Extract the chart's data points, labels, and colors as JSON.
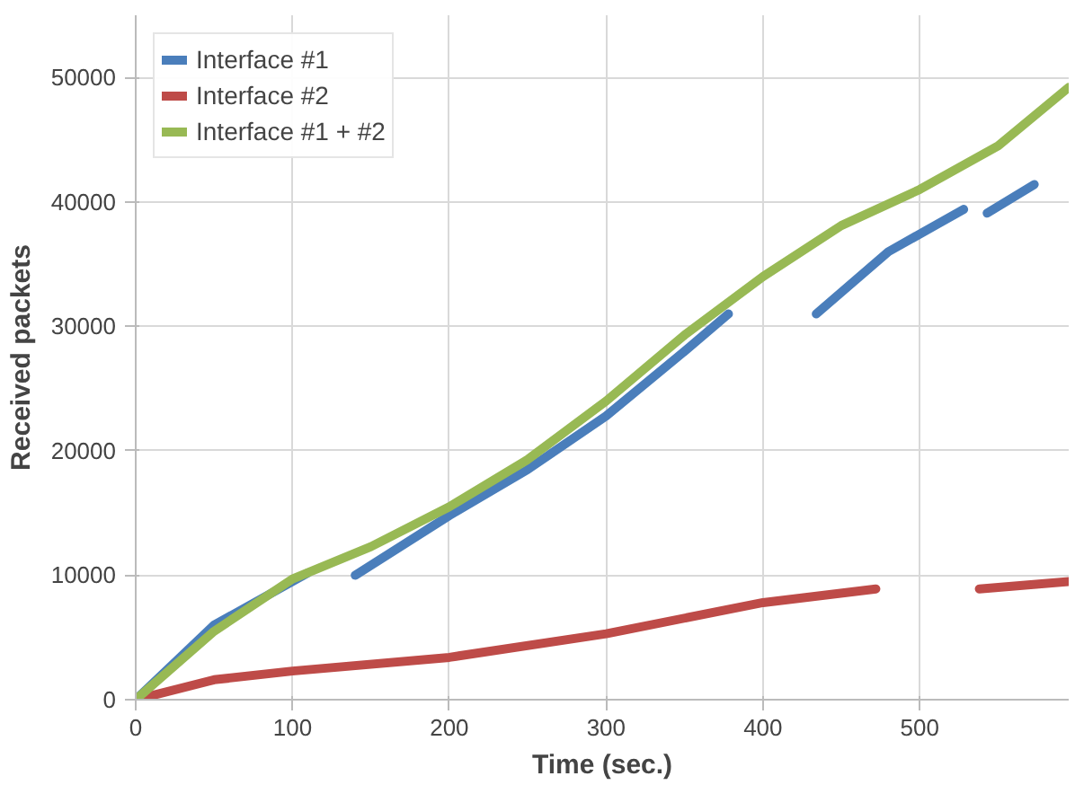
{
  "chart_data": {
    "type": "line",
    "xlabel": "Time (sec.)",
    "ylabel": "Received packets",
    "xlim": [
      0,
      595
    ],
    "ylim": [
      0,
      55000
    ],
    "xticks": [
      0,
      100,
      200,
      300,
      400,
      500
    ],
    "yticks": [
      0,
      10000,
      20000,
      30000,
      40000,
      50000
    ],
    "grid": true,
    "legend": "top left",
    "series": [
      {
        "name": "Interface #1",
        "color": "#4a7ebb",
        "x": [
          0,
          50,
          110,
          125,
          140,
          200,
          250,
          300,
          350,
          378,
          405,
          434,
          480,
          528,
          536,
          543,
          573
        ],
        "values": [
          0,
          6000,
          10200,
          null,
          10000,
          14800,
          18500,
          22800,
          28000,
          31000,
          null,
          31000,
          36000,
          39400,
          null,
          39100,
          41400
        ]
      },
      {
        "name": "Interface #2",
        "color": "#be4b48",
        "x": [
          0,
          50,
          100,
          200,
          300,
          400,
          472,
          505,
          538,
          595
        ],
        "values": [
          0,
          1600,
          2300,
          3400,
          5300,
          7800,
          8900,
          null,
          8900,
          9500
        ]
      },
      {
        "name": "Interface #1 + #2",
        "color": "#98b954",
        "x": [
          0,
          50,
          100,
          150,
          200,
          250,
          300,
          350,
          400,
          450,
          500,
          550,
          595
        ],
        "values": [
          0,
          5500,
          9700,
          12300,
          15500,
          19300,
          24000,
          29300,
          34000,
          38100,
          41000,
          44500,
          49200
        ]
      }
    ]
  }
}
